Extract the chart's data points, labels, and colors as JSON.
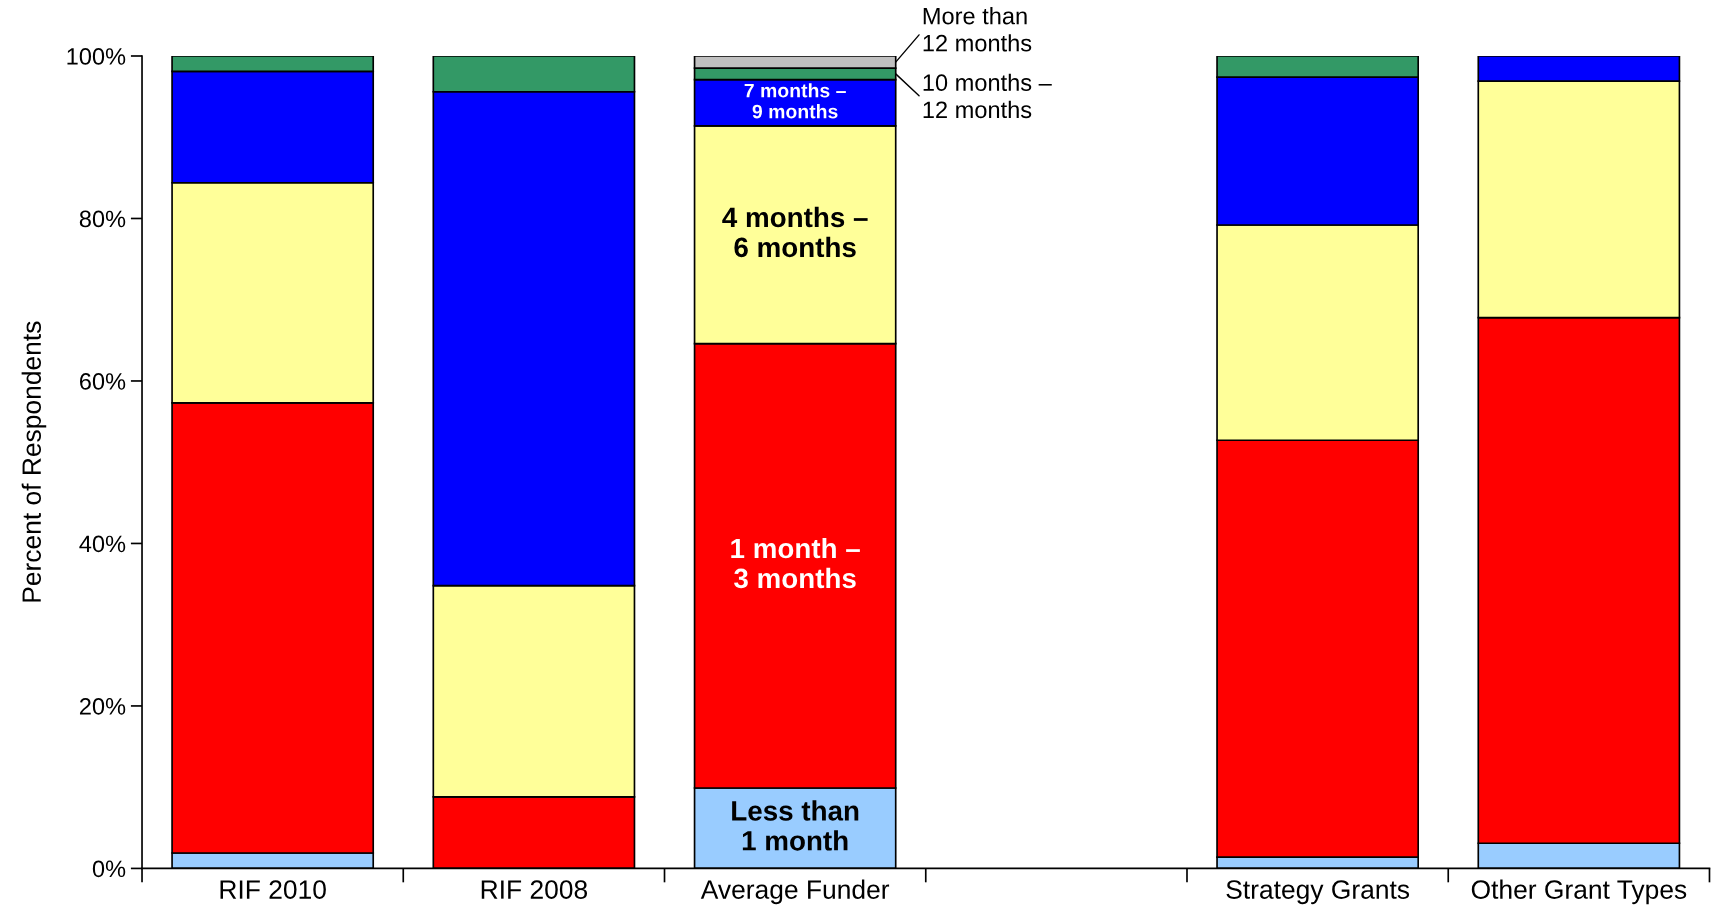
{
  "chart_data": {
    "type": "bar",
    "stacked": true,
    "ylabel": "Percent of Respondents",
    "categories": [
      "RIF 2010",
      "RIF 2008",
      "Average Funder",
      null,
      "Strategy Grants",
      "Other Grant Types"
    ],
    "series": [
      {
        "name": "Less than\n1 month",
        "color": "#99ccff",
        "values": [
          1.9,
          0,
          9.9,
          null,
          1.4,
          3.1
        ]
      },
      {
        "name": "1 month –\n3 months",
        "color": "#ff0000",
        "values": [
          55.4,
          8.8,
          54.7,
          null,
          51.3,
          64.7
        ]
      },
      {
        "name": "4 months –\n6 months",
        "color": "#ffff99",
        "values": [
          27.1,
          26.0,
          26.8,
          null,
          26.5,
          29.1
        ]
      },
      {
        "name": "7 months –\n9 months",
        "color": "#0000ff",
        "values": [
          13.7,
          60.8,
          5.7,
          null,
          18.2,
          3.1
        ]
      },
      {
        "name": "10 months –\n12 months",
        "color": "#339966",
        "values": [
          1.9,
          4.4,
          1.4,
          null,
          2.6,
          0
        ]
      },
      {
        "name": "More than\n12 months",
        "color": "#c0c0c0",
        "values": [
          0,
          0,
          1.5,
          null,
          0,
          0
        ]
      }
    ],
    "ylim": [
      0,
      100
    ],
    "yticks": [
      {
        "value": 0,
        "label": "0%"
      },
      {
        "value": 20,
        "label": "20%"
      },
      {
        "value": 40,
        "label": "40%"
      },
      {
        "value": 60,
        "label": "60%"
      },
      {
        "value": 80,
        "label": "80%"
      },
      {
        "value": 100,
        "label": "100%"
      }
    ],
    "grid": false,
    "legend": "top right"
  }
}
